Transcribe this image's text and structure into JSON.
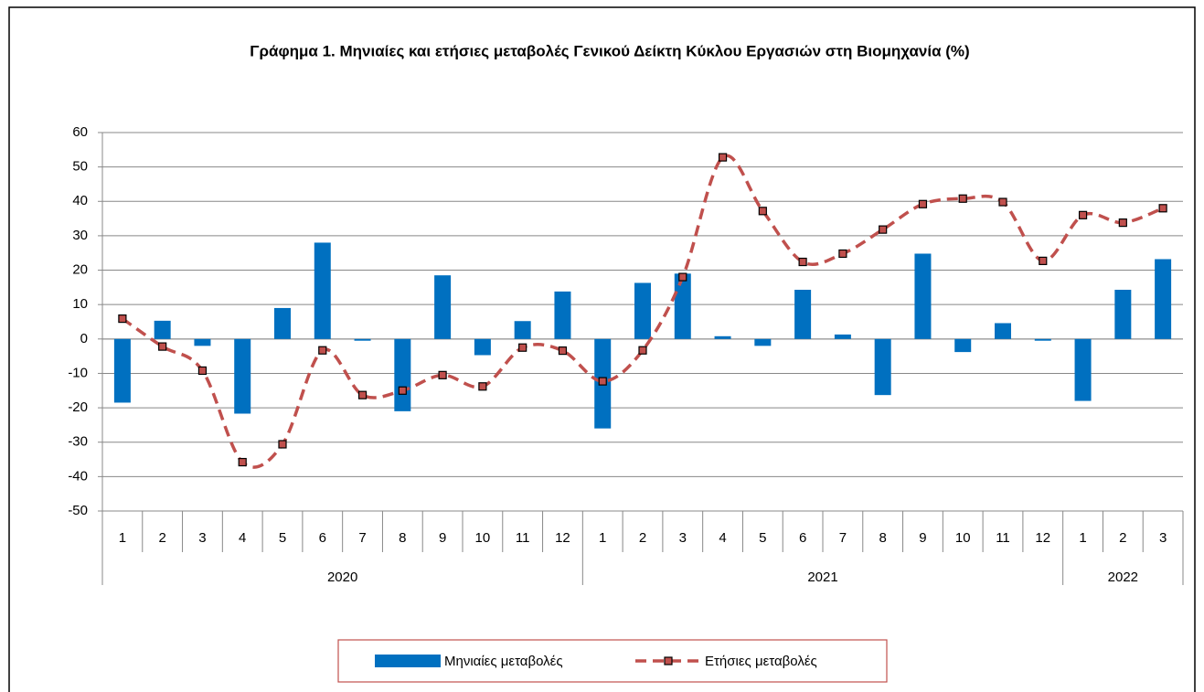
{
  "chart_data": {
    "type": "bar_line",
    "title": "Γράφημα 1. Μηνιαίες και ετήσιες μεταβολές  Γενικού Δείκτη Κύκλου Εργασιών στη Βιομηχανία (%)",
    "groups": [
      {
        "label": "2020",
        "categories": [
          "1",
          "2",
          "3",
          "4",
          "5",
          "6",
          "7",
          "8",
          "9",
          "10",
          "11",
          "12"
        ]
      },
      {
        "label": "2021",
        "categories": [
          "1",
          "2",
          "3",
          "4",
          "5",
          "6",
          "7",
          "8",
          "9",
          "10",
          "11",
          "12"
        ]
      },
      {
        "label": "2022",
        "categories": [
          "1",
          "2",
          "3"
        ]
      }
    ],
    "series": [
      {
        "name": "Μηνιαίες μεταβολές",
        "type": "bar",
        "color": "#0070c0",
        "values": [
          -18.5,
          5.3,
          -2,
          -21.7,
          9,
          28,
          -0.5,
          -21,
          18.5,
          -4.7,
          5.2,
          13.8,
          -26,
          16.3,
          19,
          0.8,
          -2,
          14.3,
          1.3,
          -16.3,
          24.8,
          -3.8,
          4.6,
          -0.5,
          -18,
          14.3,
          23.2
        ]
      },
      {
        "name": "Ετήσιες μεταβολές",
        "type": "line",
        "color": "#c0504d",
        "values": [
          5.9,
          -2.2,
          -9.2,
          -35.8,
          -30.6,
          -3.3,
          -16.3,
          -15,
          -10.5,
          -13.8,
          -2.5,
          -3.4,
          -12.3,
          -3.3,
          18,
          52.8,
          37.2,
          22.4,
          24.8,
          31.8,
          39.2,
          40.8,
          39.8,
          22.7,
          36,
          33.8,
          38
        ]
      }
    ],
    "ylim": [
      -50,
      60
    ],
    "yticks": [
      -50,
      -40,
      -30,
      -20,
      -10,
      0,
      10,
      20,
      30,
      40,
      50,
      60
    ],
    "grid": true,
    "legend": "bottom"
  }
}
